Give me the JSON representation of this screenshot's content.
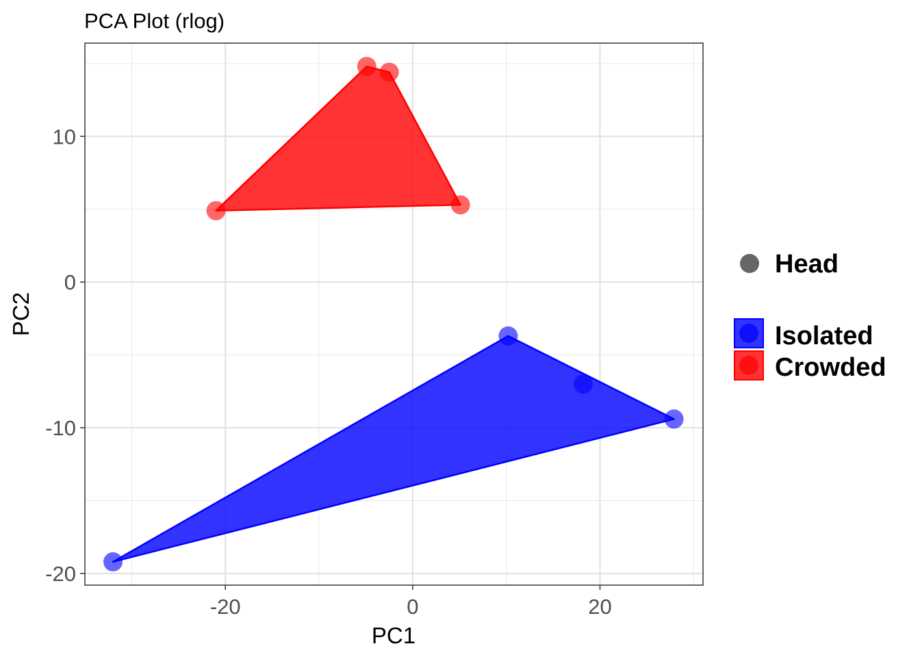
{
  "chart_data": {
    "type": "scatter",
    "title": "PCA Plot (rlog)",
    "xlabel": "PC1",
    "ylabel": "PC2",
    "xlim": [
      -35,
      31
    ],
    "ylim": [
      -20.8,
      16.4
    ],
    "x_ticks": [
      -20,
      0,
      20
    ],
    "y_ticks": [
      -20,
      -10,
      0,
      10
    ],
    "x_tick_labels": [
      "-20",
      "0",
      "20"
    ],
    "y_tick_labels": [
      "-20",
      "-10",
      "0",
      "10"
    ],
    "grid": true,
    "legend_position": "right",
    "shape_legend": {
      "entries": [
        {
          "label": "Head",
          "color": "#666666"
        }
      ]
    },
    "series": [
      {
        "name": "Isolated",
        "color": "#0000ff",
        "points": [
          {
            "x": 10.2,
            "y": -3.7
          },
          {
            "x": 18.2,
            "y": -7.0
          },
          {
            "x": 27.9,
            "y": -9.4
          },
          {
            "x": -32.0,
            "y": -19.2
          }
        ],
        "hull": [
          {
            "x": 10.2,
            "y": -3.7
          },
          {
            "x": 27.9,
            "y": -9.4
          },
          {
            "x": -32.0,
            "y": -19.2
          }
        ]
      },
      {
        "name": "Crowded",
        "color": "#ff0000",
        "points": [
          {
            "x": -4.9,
            "y": 14.8
          },
          {
            "x": -2.5,
            "y": 14.4
          },
          {
            "x": -21.0,
            "y": 4.9
          },
          {
            "x": 5.1,
            "y": 5.3
          }
        ],
        "hull": [
          {
            "x": -4.9,
            "y": 14.8
          },
          {
            "x": -2.5,
            "y": 14.4
          },
          {
            "x": 5.1,
            "y": 5.3
          },
          {
            "x": -21.0,
            "y": 4.9
          }
        ]
      }
    ]
  }
}
